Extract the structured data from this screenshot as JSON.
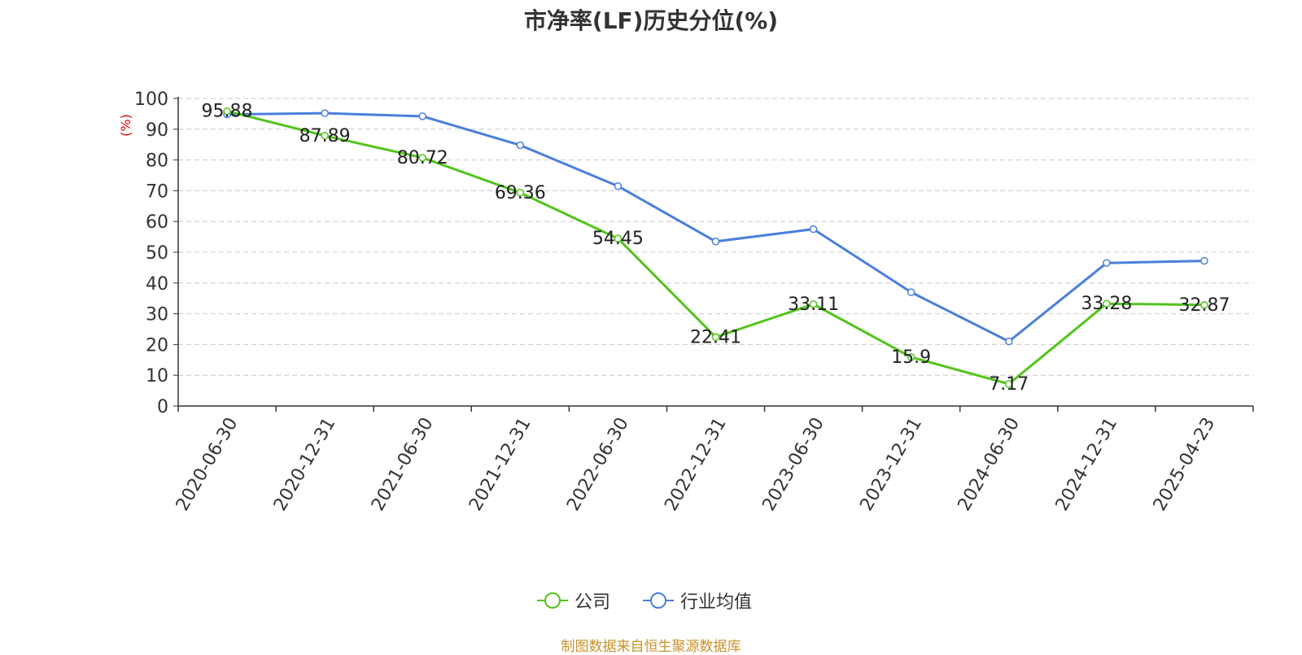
{
  "chart_data": {
    "type": "line",
    "title": "市净率(LF)历史分位(%)",
    "ylabel": "(%)",
    "xlabel": "",
    "ylim": [
      0,
      100
    ],
    "yticks": [
      0,
      10,
      20,
      30,
      40,
      50,
      60,
      70,
      80,
      90,
      100
    ],
    "categories": [
      "2020-06-30",
      "2020-12-31",
      "2021-06-30",
      "2021-12-31",
      "2022-06-30",
      "2022-12-31",
      "2023-06-30",
      "2023-12-31",
      "2024-06-30",
      "2024-12-31",
      "2025-04-23"
    ],
    "series": [
      {
        "name": "公司",
        "color": "#52c41a",
        "values": [
          95.88,
          87.89,
          80.72,
          69.36,
          54.45,
          22.41,
          33.11,
          15.9,
          7.17,
          33.28,
          32.87
        ],
        "labels": [
          "95.88",
          "87.89",
          "80.72",
          "69.36",
          "54.45",
          "22.41",
          "33.11",
          "15.9",
          "7.17",
          "33.28",
          "32.87"
        ]
      },
      {
        "name": "行业均值",
        "color": "#4a7fdb",
        "values": [
          94.8,
          95.2,
          94.2,
          84.8,
          71.5,
          53.5,
          57.5,
          37.0,
          21.0,
          46.5,
          47.2
        ]
      }
    ],
    "grid": true,
    "legend_position": "bottom-center",
    "source": "制图数据来自恒生聚源数据库"
  }
}
